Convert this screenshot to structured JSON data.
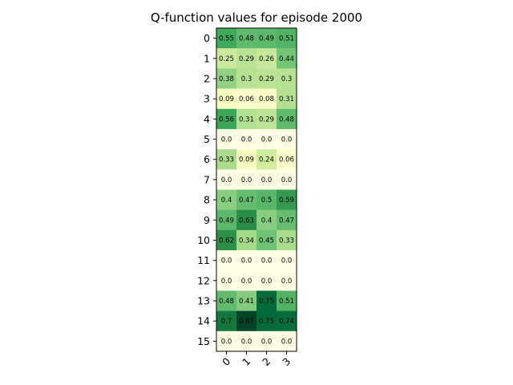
{
  "chart_data": {
    "type": "heatmap",
    "title": "Q-function values for episode 2000",
    "xlabel": "",
    "ylabel": "",
    "colormap": "YlGn",
    "color_range": [
      0.0,
      0.87
    ],
    "x_categories": [
      "0",
      "1",
      "2",
      "3"
    ],
    "y_categories": [
      "0",
      "1",
      "2",
      "3",
      "4",
      "5",
      "6",
      "7",
      "8",
      "9",
      "10",
      "11",
      "12",
      "13",
      "14",
      "15"
    ],
    "values": [
      [
        0.55,
        0.48,
        0.49,
        0.51
      ],
      [
        0.25,
        0.29,
        0.26,
        0.44
      ],
      [
        0.38,
        0.3,
        0.29,
        0.3
      ],
      [
        0.09,
        0.06,
        0.08,
        0.31
      ],
      [
        0.56,
        0.31,
        0.29,
        0.48
      ],
      [
        0.0,
        0.0,
        0.0,
        0.0
      ],
      [
        0.33,
        0.09,
        0.24,
        0.06
      ],
      [
        0.0,
        0.0,
        0.0,
        0.0
      ],
      [
        0.4,
        0.47,
        0.5,
        0.59
      ],
      [
        0.49,
        0.63,
        0.4,
        0.47
      ],
      [
        0.62,
        0.34,
        0.45,
        0.33
      ],
      [
        0.0,
        0.0,
        0.0,
        0.0
      ],
      [
        0.0,
        0.0,
        0.0,
        0.0
      ],
      [
        0.48,
        0.41,
        0.75,
        0.51
      ],
      [
        0.7,
        0.87,
        0.75,
        0.74
      ],
      [
        0.0,
        0.0,
        0.0,
        0.0
      ]
    ],
    "value_labels": [
      [
        "0.55",
        "0.48",
        "0.49",
        "0.51"
      ],
      [
        "0.25",
        "0.29",
        "0.26",
        "0.44"
      ],
      [
        "0.38",
        "0.3",
        "0.29",
        "0.3"
      ],
      [
        "0.09",
        "0.06",
        "0.08",
        "0.31"
      ],
      [
        "0.56",
        "0.31",
        "0.29",
        "0.48"
      ],
      [
        "0.0",
        "0.0",
        "0.0",
        "0.0"
      ],
      [
        "0.33",
        "0.09",
        "0.24",
        "0.06"
      ],
      [
        "0.0",
        "0.0",
        "0.0",
        "0.0"
      ],
      [
        "0.4",
        "0.47",
        "0.5",
        "0.59"
      ],
      [
        "0.49",
        "0.63",
        "0.4",
        "0.47"
      ],
      [
        "0.62",
        "0.34",
        "0.45",
        "0.33"
      ],
      [
        "0.0",
        "0.0",
        "0.0",
        "0.0"
      ],
      [
        "0.0",
        "0.0",
        "0.0",
        "0.0"
      ],
      [
        "0.48",
        "0.41",
        "0.75",
        "0.51"
      ],
      [
        "0.7",
        "0.87",
        "0.75",
        "0.74"
      ],
      [
        "0.0",
        "0.0",
        "0.0",
        "0.0"
      ]
    ],
    "grid": false,
    "legend": "none"
  }
}
